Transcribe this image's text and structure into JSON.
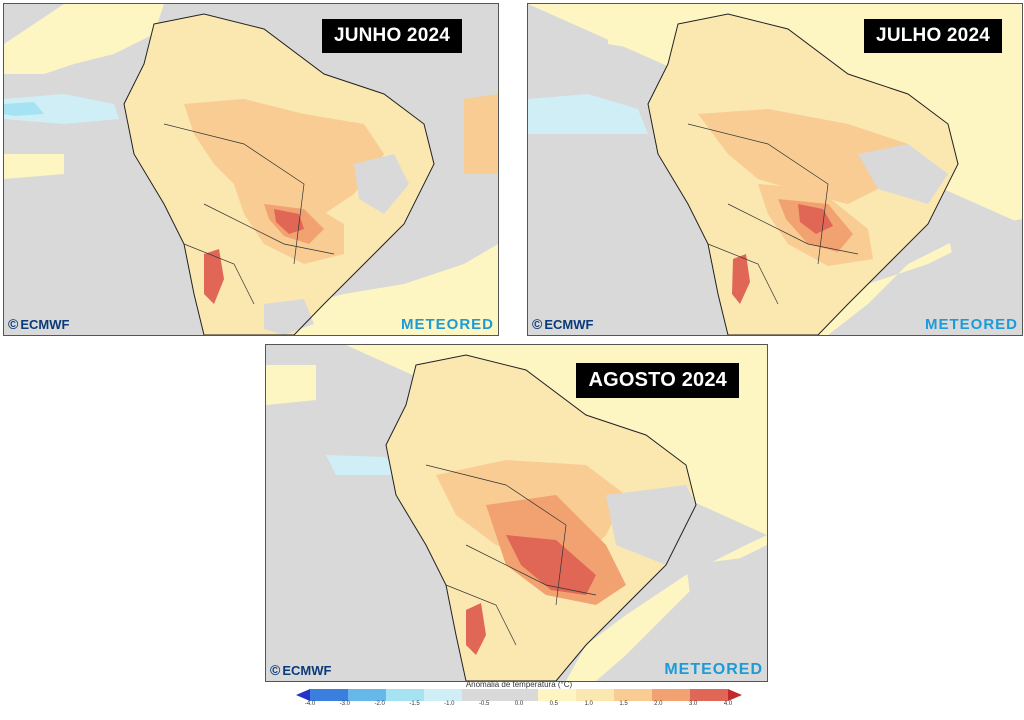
{
  "panels": [
    {
      "title": "JUNHO 2024",
      "logo_left": "ECMWF",
      "logo_right": "METEORED"
    },
    {
      "title": "JULHO 2024",
      "logo_left": "ECMWF",
      "logo_right": "METEORED"
    },
    {
      "title": "AGOSTO 2024",
      "logo_left": "ECMWF",
      "logo_right": "METEORED"
    }
  ],
  "legend": {
    "title": "Anomalia de temperatura (°C)",
    "ticks": [
      "-4.0",
      "-3.0",
      "-2.0",
      "-1.5",
      "-1.0",
      "-0.5",
      "0.0",
      "0.5",
      "1.0",
      "1.5",
      "2.0",
      "3.0",
      "4.0"
    ],
    "colors": [
      "#2533c9",
      "#3a7ee0",
      "#66b8ea",
      "#a6e3f2",
      "#cfeef5",
      "#d9d9d9",
      "#d9d9d9",
      "#fdf6c3",
      "#fbe7b0",
      "#f8cc93",
      "#f2a171",
      "#e06655",
      "#c12b2b"
    ]
  },
  "colors": {
    "ocean_neutral": "#d9d9d9",
    "warm_light": "#fdf6c3",
    "warm_1": "#fbe7b0",
    "warm_2": "#f8cc93",
    "warm_3": "#f2a171",
    "warm_4": "#e06655",
    "cool_1": "#cfeef5",
    "cool_2": "#a6e3f2",
    "ecmwf_blue": "#0a3a7a",
    "meteored_blue": "#1d9bd7"
  }
}
